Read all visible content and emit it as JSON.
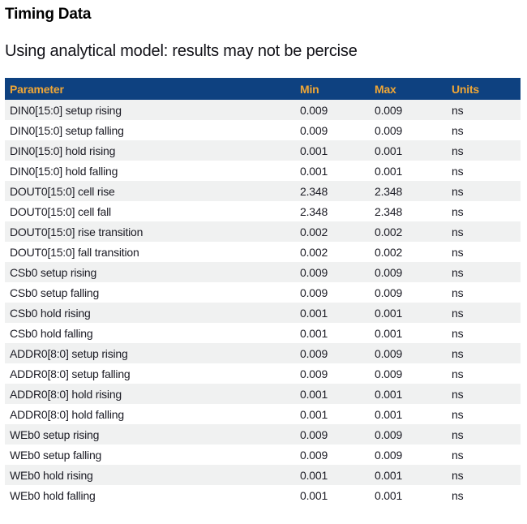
{
  "page": {
    "title": "Timing Data",
    "subtitle": "Using analytical model: results may not be percise"
  },
  "table": {
    "columns": [
      "Parameter",
      "Min",
      "Max",
      "Units"
    ],
    "rows": [
      {
        "parameter": "DIN0[15:0] setup rising",
        "min": "0.009",
        "max": "0.009",
        "units": "ns"
      },
      {
        "parameter": "DIN0[15:0] setup falling",
        "min": "0.009",
        "max": "0.009",
        "units": "ns"
      },
      {
        "parameter": "DIN0[15:0] hold rising",
        "min": "0.001",
        "max": "0.001",
        "units": "ns"
      },
      {
        "parameter": "DIN0[15:0] hold falling",
        "min": "0.001",
        "max": "0.001",
        "units": "ns"
      },
      {
        "parameter": "DOUT0[15:0] cell rise",
        "min": "2.348",
        "max": "2.348",
        "units": "ns"
      },
      {
        "parameter": "DOUT0[15:0] cell fall",
        "min": "2.348",
        "max": "2.348",
        "units": "ns"
      },
      {
        "parameter": "DOUT0[15:0] rise transition",
        "min": "0.002",
        "max": "0.002",
        "units": "ns"
      },
      {
        "parameter": "DOUT0[15:0] fall transition",
        "min": "0.002",
        "max": "0.002",
        "units": "ns"
      },
      {
        "parameter": "CSb0 setup rising",
        "min": "0.009",
        "max": "0.009",
        "units": "ns"
      },
      {
        "parameter": "CSb0 setup falling",
        "min": "0.009",
        "max": "0.009",
        "units": "ns"
      },
      {
        "parameter": "CSb0 hold rising",
        "min": "0.001",
        "max": "0.001",
        "units": "ns"
      },
      {
        "parameter": "CSb0 hold falling",
        "min": "0.001",
        "max": "0.001",
        "units": "ns"
      },
      {
        "parameter": "ADDR0[8:0] setup rising",
        "min": "0.009",
        "max": "0.009",
        "units": "ns"
      },
      {
        "parameter": "ADDR0[8:0] setup falling",
        "min": "0.009",
        "max": "0.009",
        "units": "ns"
      },
      {
        "parameter": "ADDR0[8:0] hold rising",
        "min": "0.001",
        "max": "0.001",
        "units": "ns"
      },
      {
        "parameter": "ADDR0[8:0] hold falling",
        "min": "0.001",
        "max": "0.001",
        "units": "ns"
      },
      {
        "parameter": "WEb0 setup rising",
        "min": "0.009",
        "max": "0.009",
        "units": "ns"
      },
      {
        "parameter": "WEb0 setup falling",
        "min": "0.009",
        "max": "0.009",
        "units": "ns"
      },
      {
        "parameter": "WEb0 hold rising",
        "min": "0.001",
        "max": "0.001",
        "units": "ns"
      },
      {
        "parameter": "WEb0 hold falling",
        "min": "0.001",
        "max": "0.001",
        "units": "ns"
      }
    ]
  },
  "colors": {
    "header_bg": "#0E4180",
    "header_text": "#EFA636",
    "stripe_bg": "#F0F1F1",
    "row_text": "#1B1B24",
    "title_text": "#000000"
  }
}
